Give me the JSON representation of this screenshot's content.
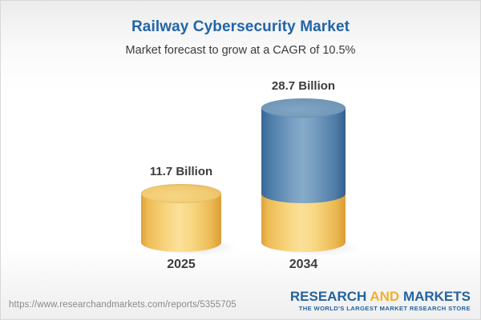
{
  "header": {
    "title": "Railway Cybersecurity Market",
    "subtitle": "Market forecast to grow at a CAGR of 10.5%"
  },
  "chart_data": {
    "type": "bar",
    "subtype": "3d-cylinder",
    "title": "Railway Cybersecurity Market",
    "subtitle": "Market forecast to grow at a CAGR of 10.5%",
    "unit": "USD Billion",
    "cagr_percent": 10.5,
    "categories": [
      "2025",
      "2034"
    ],
    "values": [
      11.7,
      28.7
    ],
    "value_labels": [
      "11.7 Billion",
      "28.7 Billion"
    ],
    "ylim": [
      0,
      28.7
    ],
    "grid": false,
    "legend_position": "none",
    "bars": [
      {
        "category": "2025",
        "value": 11.7,
        "label": "11.7 Billion",
        "segments": [
          {
            "name": "market-size-2025",
            "value": 11.7,
            "color": "#f0c463"
          }
        ]
      },
      {
        "category": "2034",
        "value": 28.7,
        "label": "28.7 Billion",
        "segments": [
          {
            "name": "base-2025-level",
            "value": 11.7,
            "color": "#f0c463"
          },
          {
            "name": "growth-to-2034",
            "value": 17.0,
            "color": "#4e7ea9"
          }
        ]
      }
    ],
    "colors": {
      "yellow": "#f0c463",
      "blue": "#4e7ea9",
      "title_text": "#2165a7",
      "label_text": "#3d3d3d"
    }
  },
  "footer": {
    "source_url": "https://www.researchandmarkets.com/reports/5355705",
    "logo": {
      "word1": "RESEARCH",
      "word2": " AND ",
      "word3": "MARKETS",
      "tagline": "THE WORLD'S LARGEST MARKET RESEARCH STORE",
      "blue": "#26639e",
      "gold": "#f0b02f"
    }
  }
}
